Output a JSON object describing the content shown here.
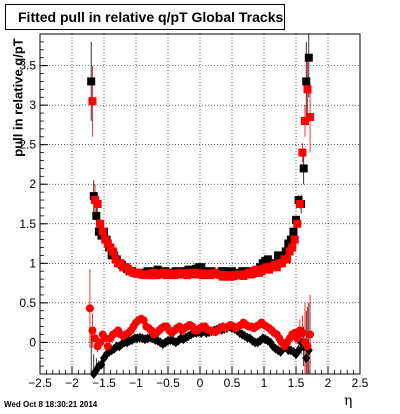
{
  "title": "Fitted pull in relative q/pT  Global Tracks",
  "ylabel": "pull in relative q/pT",
  "xlabel": "η",
  "datestamp": "Wed Oct  8 18:30:21 2014",
  "chart_data": {
    "type": "scatter",
    "title": "Fitted pull in relative q/pT  Global Tracks",
    "xlabel": "η",
    "ylabel": "pull in relative q/pT",
    "xlim": [
      -2.5,
      2.5
    ],
    "ylim": [
      -0.4,
      3.9
    ],
    "grid": true,
    "xticks": [
      -2.5,
      -2,
      -1.5,
      -1,
      -0.5,
      0,
      0.5,
      1,
      1.5,
      2,
      2.5
    ],
    "yticks": [
      0,
      0.5,
      1,
      1.5,
      2,
      2.5,
      3,
      3.5
    ],
    "series": [
      {
        "marker": "square",
        "color": "#000000",
        "role": "width",
        "x": [
          -1.7,
          -1.66,
          -1.62,
          -1.58,
          -1.54,
          -1.5,
          -1.46,
          -1.42,
          -1.38,
          -1.34,
          -1.3,
          -1.26,
          -1.22,
          -1.18,
          -1.14,
          -1.1,
          -1.06,
          -1.02,
          -0.98,
          -0.94,
          -0.9,
          -0.86,
          -0.82,
          -0.78,
          -0.74,
          -0.7,
          -0.66,
          -0.62,
          -0.58,
          -0.54,
          -0.5,
          -0.46,
          -0.42,
          -0.38,
          -0.34,
          -0.3,
          -0.26,
          -0.22,
          -0.18,
          -0.14,
          -0.1,
          -0.06,
          -0.02,
          0.02,
          0.06,
          0.1,
          0.14,
          0.18,
          0.22,
          0.26,
          0.3,
          0.34,
          0.38,
          0.42,
          0.46,
          0.5,
          0.54,
          0.58,
          0.62,
          0.66,
          0.7,
          0.74,
          0.78,
          0.82,
          0.86,
          0.9,
          0.94,
          0.98,
          1.02,
          1.06,
          1.1,
          1.14,
          1.18,
          1.22,
          1.26,
          1.3,
          1.34,
          1.38,
          1.42,
          1.46,
          1.5,
          1.54,
          1.58,
          1.62,
          1.66,
          1.7
        ],
        "y": [
          3.3,
          1.85,
          1.6,
          1.4,
          1.35,
          1.4,
          1.3,
          1.2,
          1.1,
          1.1,
          1.05,
          1.0,
          0.98,
          0.95,
          0.93,
          0.9,
          0.9,
          0.88,
          0.87,
          0.88,
          0.87,
          0.86,
          0.9,
          0.88,
          0.85,
          0.9,
          0.92,
          0.88,
          0.87,
          0.9,
          0.88,
          0.87,
          0.88,
          0.9,
          0.89,
          0.88,
          0.9,
          0.9,
          0.92,
          0.88,
          0.87,
          0.93,
          0.95,
          0.95,
          0.9,
          0.88,
          0.88,
          0.9,
          0.87,
          0.87,
          0.88,
          0.9,
          0.9,
          0.88,
          0.87,
          0.9,
          0.86,
          0.85,
          0.88,
          0.9,
          0.88,
          0.9,
          0.86,
          0.87,
          0.88,
          0.9,
          0.95,
          1.0,
          1.03,
          1.05,
          1.0,
          0.95,
          1.0,
          1.1,
          1.0,
          1.05,
          1.15,
          1.25,
          1.3,
          1.4,
          1.55,
          1.8,
          1.75,
          2.2,
          3.3,
          3.6
        ],
        "err": [
          0.5,
          0.2,
          0.12,
          0.06,
          0.05,
          0.04,
          0.03,
          0.03,
          0.03,
          0.03,
          0.02,
          0.02,
          0.02,
          0.02,
          0.02,
          0.02,
          0.02,
          0.02,
          0.02,
          0.02,
          0.02,
          0.02,
          0.02,
          0.02,
          0.02,
          0.02,
          0.02,
          0.02,
          0.02,
          0.02,
          0.02,
          0.02,
          0.02,
          0.02,
          0.02,
          0.02,
          0.02,
          0.02,
          0.02,
          0.02,
          0.02,
          0.02,
          0.02,
          0.02,
          0.02,
          0.02,
          0.02,
          0.02,
          0.02,
          0.02,
          0.02,
          0.02,
          0.02,
          0.02,
          0.02,
          0.02,
          0.02,
          0.02,
          0.02,
          0.02,
          0.02,
          0.02,
          0.02,
          0.02,
          0.02,
          0.02,
          0.02,
          0.02,
          0.02,
          0.02,
          0.02,
          0.02,
          0.02,
          0.02,
          0.02,
          0.03,
          0.03,
          0.03,
          0.03,
          0.04,
          0.05,
          0.06,
          0.12,
          0.2,
          0.5,
          0.5
        ]
      },
      {
        "marker": "square",
        "color": "#ff0000",
        "role": "width",
        "x": [
          -1.68,
          -1.64,
          -1.6,
          -1.56,
          -1.52,
          -1.48,
          -1.44,
          -1.4,
          -1.36,
          -1.32,
          -1.28,
          -1.24,
          -1.2,
          -1.16,
          -1.12,
          -1.08,
          -1.04,
          -1.0,
          -0.96,
          -0.92,
          -0.88,
          -0.84,
          -0.8,
          -0.76,
          -0.72,
          -0.68,
          -0.64,
          -0.6,
          -0.56,
          -0.52,
          -0.48,
          -0.44,
          -0.4,
          -0.36,
          -0.32,
          -0.28,
          -0.24,
          -0.2,
          -0.16,
          -0.12,
          -0.08,
          -0.04,
          0.0,
          0.04,
          0.08,
          0.12,
          0.16,
          0.2,
          0.24,
          0.28,
          0.32,
          0.36,
          0.4,
          0.44,
          0.48,
          0.52,
          0.56,
          0.6,
          0.64,
          0.68,
          0.72,
          0.76,
          0.8,
          0.84,
          0.88,
          0.92,
          0.96,
          1.0,
          1.04,
          1.08,
          1.12,
          1.16,
          1.2,
          1.24,
          1.28,
          1.32,
          1.36,
          1.4,
          1.44,
          1.48,
          1.52,
          1.56,
          1.6,
          1.64,
          1.68,
          1.72
        ],
        "y": [
          3.05,
          1.8,
          1.75,
          1.5,
          1.4,
          1.3,
          1.25,
          1.2,
          1.15,
          1.05,
          1.0,
          1.0,
          0.95,
          0.95,
          0.92,
          0.9,
          0.88,
          0.87,
          0.88,
          0.86,
          0.85,
          0.86,
          0.85,
          0.87,
          0.88,
          0.85,
          0.87,
          0.86,
          0.88,
          0.85,
          0.87,
          0.86,
          0.85,
          0.87,
          0.88,
          0.86,
          0.87,
          0.85,
          0.88,
          0.86,
          0.87,
          0.88,
          0.86,
          0.85,
          0.87,
          0.86,
          0.85,
          0.87,
          0.88,
          0.86,
          0.85,
          0.83,
          0.84,
          0.85,
          0.83,
          0.84,
          0.85,
          0.86,
          0.85,
          0.84,
          0.86,
          0.88,
          0.86,
          0.9,
          0.92,
          0.88,
          0.9,
          0.93,
          0.95,
          0.92,
          0.95,
          0.98,
          0.95,
          1.0,
          1.0,
          1.05,
          1.05,
          1.15,
          1.2,
          1.3,
          1.5,
          1.75,
          2.4,
          2.8,
          3.2,
          2.85
        ],
        "err": [
          0.45,
          0.2,
          0.12,
          0.06,
          0.05,
          0.04,
          0.03,
          0.03,
          0.03,
          0.03,
          0.02,
          0.02,
          0.02,
          0.02,
          0.02,
          0.02,
          0.02,
          0.02,
          0.02,
          0.02,
          0.02,
          0.02,
          0.02,
          0.02,
          0.02,
          0.02,
          0.02,
          0.02,
          0.02,
          0.02,
          0.02,
          0.02,
          0.02,
          0.02,
          0.02,
          0.02,
          0.02,
          0.02,
          0.02,
          0.02,
          0.02,
          0.02,
          0.02,
          0.02,
          0.02,
          0.02,
          0.02,
          0.02,
          0.02,
          0.02,
          0.02,
          0.02,
          0.02,
          0.02,
          0.02,
          0.02,
          0.02,
          0.02,
          0.02,
          0.02,
          0.02,
          0.02,
          0.02,
          0.02,
          0.02,
          0.02,
          0.02,
          0.02,
          0.02,
          0.02,
          0.02,
          0.02,
          0.02,
          0.02,
          0.02,
          0.02,
          0.03,
          0.03,
          0.03,
          0.04,
          0.05,
          0.06,
          0.12,
          0.2,
          0.45,
          0.45
        ]
      },
      {
        "marker": "diamond",
        "color": "#000000",
        "role": "mean",
        "x": [
          -1.7,
          -1.66,
          -1.62,
          -1.58,
          -1.54,
          -1.5,
          -1.46,
          -1.42,
          -1.38,
          -1.34,
          -1.3,
          -1.26,
          -1.22,
          -1.18,
          -1.14,
          -1.1,
          -1.06,
          -1.02,
          -0.98,
          -0.94,
          -0.9,
          -0.86,
          -0.82,
          -0.78,
          -0.74,
          -0.7,
          -0.66,
          -0.62,
          -0.58,
          -0.54,
          -0.5,
          -0.46,
          -0.42,
          -0.38,
          -0.34,
          -0.3,
          -0.26,
          -0.22,
          -0.18,
          -0.14,
          -0.1,
          -0.06,
          -0.02,
          0.02,
          0.06,
          0.1,
          0.14,
          0.18,
          0.22,
          0.26,
          0.3,
          0.34,
          0.38,
          0.42,
          0.46,
          0.5,
          0.54,
          0.58,
          0.62,
          0.66,
          0.7,
          0.74,
          0.78,
          0.82,
          0.86,
          0.9,
          0.94,
          0.98,
          1.02,
          1.06,
          1.1,
          1.14,
          1.18,
          1.22,
          1.26,
          1.3,
          1.34,
          1.38,
          1.42,
          1.46,
          1.5,
          1.54,
          1.58,
          1.62,
          1.66,
          1.7
        ],
        "y": [
          -0.45,
          -0.4,
          -0.35,
          -0.3,
          -0.28,
          -0.2,
          -0.15,
          -0.12,
          -0.1,
          -0.08,
          -0.05,
          -0.05,
          -0.02,
          0.0,
          0.0,
          0.02,
          0.03,
          0.05,
          0.05,
          0.06,
          0.05,
          0.04,
          0.05,
          0.06,
          0.05,
          0.03,
          0.02,
          0.0,
          -0.02,
          0.0,
          0.02,
          0.03,
          0.02,
          0.0,
          0.02,
          0.05,
          0.04,
          0.06,
          0.08,
          0.1,
          0.12,
          0.12,
          0.13,
          0.12,
          0.14,
          0.12,
          0.13,
          0.14,
          0.15,
          0.16,
          0.18,
          0.16,
          0.17,
          0.18,
          0.2,
          0.18,
          0.17,
          0.15,
          0.12,
          0.1,
          0.08,
          0.06,
          0.05,
          0.02,
          0.0,
          0.0,
          0.02,
          0.05,
          0.04,
          0.02,
          0.0,
          -0.05,
          -0.08,
          -0.1,
          -0.12,
          -0.08,
          -0.05,
          -0.1,
          -0.1,
          -0.12,
          -0.15,
          -0.1,
          0.0,
          -0.05,
          -0.2,
          -0.1
        ],
        "err": [
          0.6,
          0.25,
          0.15,
          0.07,
          0.05,
          0.04,
          0.03,
          0.03,
          0.03,
          0.03,
          0.02,
          0.02,
          0.02,
          0.02,
          0.02,
          0.02,
          0.02,
          0.02,
          0.02,
          0.02,
          0.02,
          0.02,
          0.02,
          0.02,
          0.02,
          0.02,
          0.02,
          0.02,
          0.02,
          0.02,
          0.02,
          0.02,
          0.02,
          0.02,
          0.02,
          0.02,
          0.02,
          0.02,
          0.02,
          0.02,
          0.02,
          0.02,
          0.02,
          0.02,
          0.02,
          0.02,
          0.02,
          0.02,
          0.02,
          0.02,
          0.02,
          0.02,
          0.02,
          0.02,
          0.02,
          0.02,
          0.02,
          0.02,
          0.02,
          0.02,
          0.02,
          0.02,
          0.02,
          0.02,
          0.02,
          0.02,
          0.02,
          0.02,
          0.02,
          0.02,
          0.02,
          0.02,
          0.02,
          0.02,
          0.02,
          0.03,
          0.03,
          0.03,
          0.03,
          0.04,
          0.05,
          0.07,
          0.15,
          0.25,
          0.6,
          0.6
        ]
      },
      {
        "marker": "circle",
        "color": "#ff0000",
        "role": "mean",
        "x": [
          -1.72,
          -1.68,
          -1.64,
          -1.6,
          -1.56,
          -1.52,
          -1.48,
          -1.44,
          -1.4,
          -1.36,
          -1.32,
          -1.28,
          -1.24,
          -1.2,
          -1.16,
          -1.12,
          -1.08,
          -1.04,
          -1.0,
          -0.96,
          -0.92,
          -0.88,
          -0.84,
          -0.8,
          -0.76,
          -0.72,
          -0.68,
          -0.64,
          -0.6,
          -0.56,
          -0.52,
          -0.48,
          -0.44,
          -0.4,
          -0.36,
          -0.32,
          -0.28,
          -0.24,
          -0.2,
          -0.16,
          -0.12,
          -0.08,
          -0.04,
          0.0,
          0.04,
          0.08,
          0.12,
          0.16,
          0.2,
          0.24,
          0.28,
          0.32,
          0.36,
          0.4,
          0.44,
          0.48,
          0.52,
          0.56,
          0.6,
          0.64,
          0.68,
          0.72,
          0.76,
          0.8,
          0.84,
          0.88,
          0.92,
          0.96,
          1.0,
          1.04,
          1.08,
          1.12,
          1.16,
          1.2,
          1.24,
          1.28,
          1.32,
          1.36,
          1.4,
          1.44,
          1.48,
          1.52,
          1.56,
          1.6,
          1.64,
          1.68,
          1.72
        ],
        "y": [
          0.43,
          0.15,
          0.05,
          -0.05,
          0.0,
          0.1,
          0.05,
          -0.05,
          0.05,
          0.1,
          0.12,
          0.15,
          0.1,
          0.08,
          0.1,
          0.12,
          0.15,
          0.2,
          0.25,
          0.28,
          0.3,
          0.28,
          0.2,
          0.18,
          0.15,
          0.1,
          0.12,
          0.15,
          0.18,
          0.2,
          0.2,
          0.15,
          0.12,
          0.15,
          0.18,
          0.2,
          0.15,
          0.18,
          0.2,
          0.22,
          0.2,
          0.15,
          0.15,
          0.18,
          0.2,
          0.2,
          0.16,
          0.15,
          0.14,
          0.13,
          0.15,
          0.18,
          0.2,
          0.18,
          0.2,
          0.22,
          0.2,
          0.18,
          0.2,
          0.22,
          0.25,
          0.22,
          0.2,
          0.2,
          0.18,
          0.2,
          0.22,
          0.25,
          0.22,
          0.2,
          0.18,
          0.15,
          0.12,
          0.1,
          0.05,
          0.0,
          -0.05,
          0.0,
          0.05,
          0.1,
          0.12,
          0.05,
          0.15,
          0.12,
          0.0,
          -0.05,
          0.1
        ],
        "err": [
          0.5,
          0.22,
          0.14,
          0.07,
          0.05,
          0.04,
          0.03,
          0.03,
          0.03,
          0.03,
          0.02,
          0.02,
          0.02,
          0.02,
          0.02,
          0.02,
          0.02,
          0.02,
          0.02,
          0.02,
          0.02,
          0.02,
          0.02,
          0.02,
          0.02,
          0.02,
          0.02,
          0.02,
          0.02,
          0.02,
          0.02,
          0.02,
          0.02,
          0.02,
          0.02,
          0.02,
          0.02,
          0.02,
          0.02,
          0.02,
          0.02,
          0.02,
          0.02,
          0.02,
          0.02,
          0.02,
          0.02,
          0.02,
          0.02,
          0.02,
          0.02,
          0.02,
          0.02,
          0.02,
          0.02,
          0.02,
          0.02,
          0.02,
          0.02,
          0.02,
          0.02,
          0.02,
          0.02,
          0.02,
          0.02,
          0.02,
          0.02,
          0.02,
          0.02,
          0.02,
          0.02,
          0.02,
          0.02,
          0.02,
          0.02,
          0.02,
          0.03,
          0.03,
          0.03,
          0.04,
          0.05,
          0.07,
          0.14,
          0.22,
          0.5,
          0.5,
          0.5
        ]
      }
    ]
  }
}
